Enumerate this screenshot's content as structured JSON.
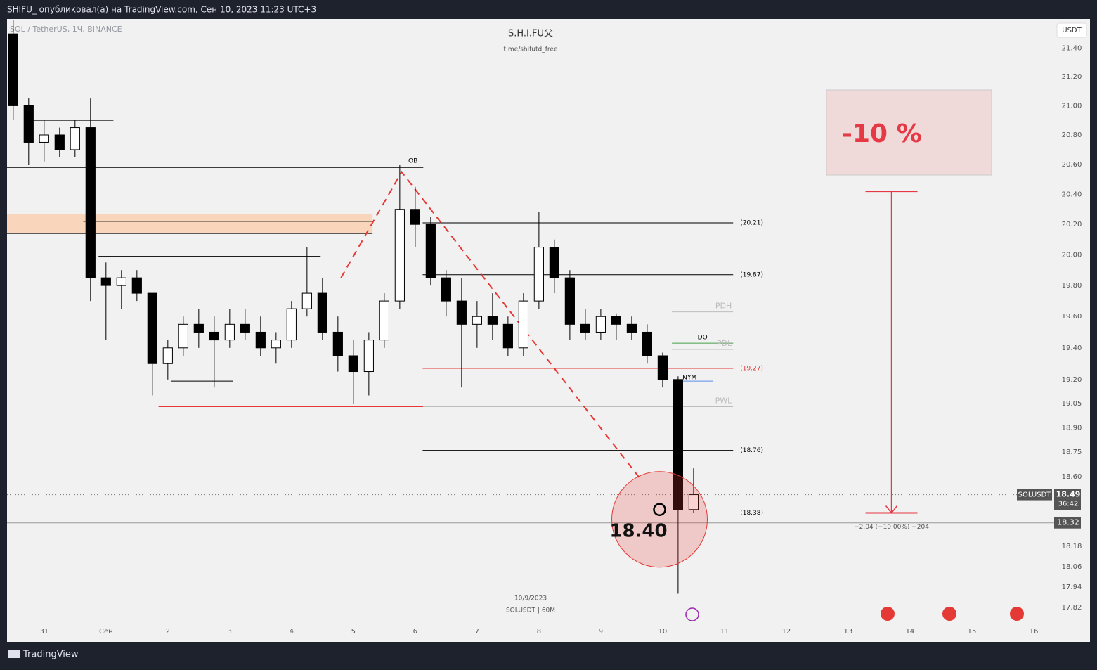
{
  "header": {
    "text": "SHIFU_ опубликовал(а) на TradingView.com, Сен 10, 2023 11:23 UTC+3"
  },
  "footer": {
    "brand": "TradingView"
  },
  "chart_data": {
    "type": "candlestick",
    "symbol": "SOL / TetherUS, 1Ч, BINANCE",
    "title": "S.H.I.FU父",
    "subtitle": "t.me/shifutd_free",
    "currency": "USDT",
    "date_label": "10/9/2023",
    "interval_label": "SOLUSDT | 60M",
    "log_scale": true,
    "xlim": [
      -0.6,
      16.33
    ],
    "xticks": [
      {
        "value": 0,
        "label": "31"
      },
      {
        "value": 1,
        "label": "Сен"
      },
      2,
      3,
      4,
      5,
      6,
      7,
      8,
      9,
      10,
      11,
      12,
      13,
      14,
      15,
      16
    ],
    "ylim": [
      17.62,
      21.6
    ],
    "yticks": [
      {
        "value": 21.4,
        "label": "21.40"
      },
      {
        "value": 21.2,
        "label": "21.20"
      },
      {
        "value": 21,
        "label": "21.00"
      },
      {
        "value": 20.8,
        "label": "20.80"
      },
      {
        "value": 20.6,
        "label": "20.60"
      },
      {
        "value": 20.4,
        "label": "20.40"
      },
      {
        "value": 20.2,
        "label": "20.20"
      },
      {
        "value": 20,
        "label": "20.00"
      },
      {
        "value": 19.8,
        "label": "19.80"
      },
      {
        "value": 19.6,
        "label": "19.60"
      },
      {
        "value": 19.4,
        "label": "19.40"
      },
      {
        "value": 19.2,
        "label": "19.20"
      },
      {
        "value": 19.05,
        "label": "19.05"
      },
      {
        "value": 18.9,
        "label": "18.90"
      },
      {
        "value": 18.75,
        "label": "18.75"
      },
      {
        "value": 18.6,
        "label": "18.60"
      },
      {
        "value": 18.18,
        "label": "18.18"
      },
      {
        "value": 18.06,
        "label": "18.06"
      },
      {
        "value": 17.94,
        "label": "17.94"
      },
      {
        "value": 17.82,
        "label": "17.82"
      }
    ],
    "series": [
      {
        "name": "SOLUSDT",
        "up_color": "#ffffff",
        "down_color": "#000000",
        "x": [
          -0.5,
          -0.25,
          0,
          0.25,
          0.5,
          0.75,
          1,
          1.25,
          1.5,
          1.75,
          2,
          2.25,
          2.5,
          2.75,
          3,
          3.25,
          3.5,
          3.75,
          4,
          4.25,
          4.5,
          4.75,
          5,
          5.25,
          5.5,
          5.75,
          6,
          6.25,
          6.5,
          6.75,
          7,
          7.25,
          7.5,
          7.75,
          8,
          8.25,
          8.5,
          8.75,
          9,
          9.25,
          9.5,
          9.75,
          10,
          10.25,
          10.5
        ],
        "open": [
          21.5,
          21,
          20.75,
          20.8,
          20.7,
          20.85,
          19.85,
          19.8,
          19.85,
          19.75,
          19.3,
          19.4,
          19.55,
          19.5,
          19.45,
          19.55,
          19.5,
          19.4,
          19.45,
          19.65,
          19.75,
          19.5,
          19.35,
          19.25,
          19.45,
          19.7,
          20.3,
          20.2,
          19.85,
          19.7,
          19.55,
          19.6,
          19.55,
          19.4,
          19.7,
          20.05,
          19.85,
          19.55,
          19.5,
          19.6,
          19.55,
          19.5,
          19.35,
          19.2,
          18.4
        ],
        "high": [
          21.6,
          21.05,
          20.9,
          20.85,
          20.9,
          21.05,
          19.95,
          19.9,
          19.9,
          19.75,
          19.45,
          19.6,
          19.65,
          19.6,
          19.65,
          19.65,
          19.6,
          19.5,
          19.7,
          20.05,
          19.85,
          19.6,
          19.45,
          19.5,
          19.75,
          20.6,
          20.45,
          20.25,
          19.9,
          19.85,
          19.7,
          19.75,
          19.6,
          19.75,
          20.28,
          20.1,
          19.9,
          19.65,
          19.65,
          19.62,
          19.6,
          19.55,
          19.37,
          19.22,
          18.65
        ],
        "low": [
          20.9,
          20.6,
          20.62,
          20.65,
          20.65,
          19.7,
          19.45,
          19.65,
          19.7,
          19.1,
          19.2,
          19.35,
          19.4,
          19.15,
          19.4,
          19.45,
          19.35,
          19.3,
          19.4,
          19.6,
          19.45,
          19.25,
          19.05,
          19.1,
          19.4,
          19.65,
          20.05,
          19.8,
          19.6,
          19.15,
          19.4,
          19.45,
          19.35,
          19.35,
          19.65,
          19.75,
          19.45,
          19.45,
          19.45,
          19.45,
          19.45,
          19.3,
          19.15,
          17.9,
          18.38
        ],
        "close": [
          21,
          20.75,
          20.8,
          20.7,
          20.85,
          19.85,
          19.8,
          19.85,
          19.75,
          19.3,
          19.4,
          19.55,
          19.5,
          19.45,
          19.55,
          19.5,
          19.4,
          19.45,
          19.65,
          19.75,
          19.5,
          19.35,
          19.25,
          19.45,
          19.7,
          20.3,
          20.2,
          19.85,
          19.7,
          19.55,
          19.6,
          19.55,
          19.4,
          19.7,
          20.05,
          19.85,
          19.55,
          19.5,
          19.6,
          19.55,
          19.5,
          19.35,
          19.2,
          18.4,
          18.49
        ]
      }
    ],
    "zone": {
      "low": 20.14,
      "high": 20.27,
      "from": -0.6,
      "to": 5.31,
      "color": "#f8d5bb"
    },
    "levels": [
      {
        "value": 20.9,
        "from": -0.26,
        "to": 1.12,
        "color": "#000000"
      },
      {
        "value": 20.58,
        "from": -0.6,
        "to": 6.13,
        "color": "#000000",
        "label": "OB",
        "label_position": "above"
      },
      {
        "value": 20.22,
        "from": 0.63,
        "to": 5.31,
        "color": "#000000"
      },
      {
        "value": 20.14,
        "from": -0.6,
        "to": 5.31,
        "color": "#000000"
      },
      {
        "value": 19.99,
        "from": 0.88,
        "to": 4.47,
        "color": "#000000"
      },
      {
        "value": 19.19,
        "from": 2.05,
        "to": 3.05,
        "color": "#000000"
      },
      {
        "value": 19.03,
        "from": 1.85,
        "to": 6.13,
        "color": "#e53935"
      },
      {
        "value": 19.03,
        "from": 6.13,
        "to": 11.14,
        "color": "#bdbdbd",
        "label": "PWL",
        "label_position": "end"
      },
      {
        "value": 20.21,
        "from": 6.12,
        "to": 11.14,
        "color": "#000000",
        "label": "(20.21)",
        "label_position": "right"
      },
      {
        "value": 19.87,
        "from": 6.12,
        "to": 11.14,
        "color": "#000000",
        "label": "(19.87)",
        "label_position": "right"
      },
      {
        "value": 19.27,
        "from": 6.12,
        "to": 11.14,
        "color": "#e53935",
        "label": "(19.27)",
        "label_position": "right"
      },
      {
        "value": 18.76,
        "from": 6.12,
        "to": 11.14,
        "color": "#000000",
        "label": "(18.76)",
        "label_position": "right"
      },
      {
        "value": 18.38,
        "from": 6.12,
        "to": 11.14,
        "color": "#000000",
        "label": "(18.38)",
        "label_position": "right"
      },
      {
        "value": 19.63,
        "from": 10.15,
        "to": 11.14,
        "color": "#bdbdbd",
        "label": "PDH",
        "label_position": "end"
      },
      {
        "value": 19.43,
        "from": 10.15,
        "to": 11.14,
        "color": "#43a047",
        "label": "DO",
        "label_position": "mid"
      },
      {
        "value": 19.39,
        "from": 10.15,
        "to": 11.14,
        "color": "#bdbdbd",
        "label": "PDL",
        "label_position": "end"
      },
      {
        "value": 19.19,
        "from": 10.3,
        "to": 10.82,
        "color": "#5b8def",
        "label": "NYM",
        "label_position": "start"
      }
    ],
    "projection": {
      "x": [
        4.8,
        5.78,
        9.65
      ],
      "y": [
        19.85,
        20.55,
        18.58
      ],
      "color": "#e53935"
    },
    "target": {
      "x": 9.95,
      "value": 18.4,
      "label": "18.40"
    },
    "measure": {
      "x": 13.7,
      "from": 20.42,
      "to": 18.38,
      "label": "−2.04 (−10.00%) −204",
      "badge": "-10 %",
      "color": "#e53945"
    },
    "last_price": {
      "value": 18.49,
      "label": "18.49",
      "countdown": "36:42"
    },
    "low_line": {
      "value": 18.32,
      "label": "18.32"
    }
  }
}
